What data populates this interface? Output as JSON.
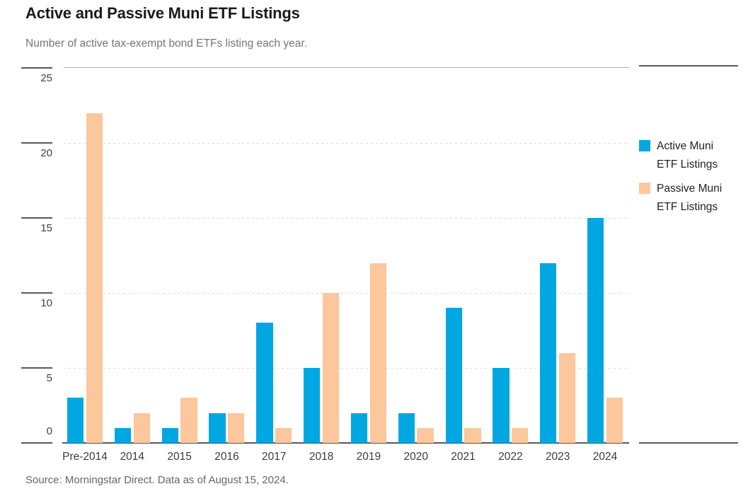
{
  "header": {
    "title": "Active and Passive Muni ETF Listings",
    "subtitle": "Number of active tax-exempt bond ETFs listing each year."
  },
  "legend": {
    "position": "right",
    "items": [
      {
        "line1": "Active Muni",
        "line2": "ETF Listings",
        "color": "#00A7E0"
      },
      {
        "line1": "Passive Muni",
        "line2": "ETF Listings",
        "color": "#FCC79C"
      }
    ]
  },
  "footer": {
    "source": "Source: Morningstar Direct. Data as of August 15, 2024."
  },
  "chart_data": {
    "type": "bar",
    "title": "Active and Passive Muni ETF Listings",
    "subtitle": "Number of active tax-exempt bond ETFs listing each year.",
    "xlabel": "",
    "ylabel": "",
    "categories": [
      "Pre-2014",
      "2014",
      "2015",
      "2016",
      "2017",
      "2018",
      "2019",
      "2020",
      "2021",
      "2022",
      "2023",
      "2024"
    ],
    "series": [
      {
        "name": "Active Muni ETF Listings",
        "color": "#00A7E0",
        "values": [
          3,
          1,
          1,
          2,
          8,
          5,
          2,
          2,
          9,
          5,
          12,
          15
        ]
      },
      {
        "name": "Passive Muni ETF Listings",
        "color": "#FCC79C",
        "values": [
          22,
          2,
          3,
          2,
          1,
          10,
          12,
          1,
          1,
          1,
          6,
          3
        ]
      }
    ],
    "ylim": [
      0,
      25
    ],
    "y_ticks": [
      0,
      5,
      10,
      15,
      20,
      25
    ],
    "grid": "horizontal-dotted",
    "legend_position": "right"
  }
}
